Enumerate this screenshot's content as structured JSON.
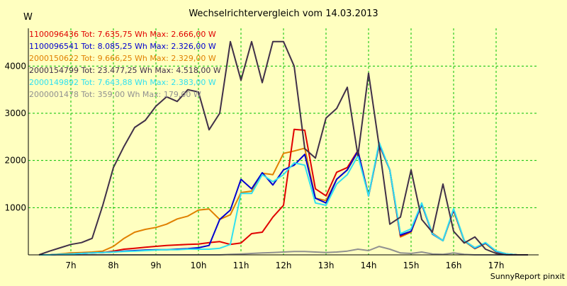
{
  "chart_data": {
    "type": "line",
    "title": "Wechselrichtervergleich vom 14.03.2013",
    "ylabel": "W",
    "xlabel": "",
    "ylim": [
      0,
      4800
    ],
    "xlim": [
      6.0,
      18.0
    ],
    "grid": true,
    "legend_position": "top-left",
    "y_ticks": [
      {
        "value": 1000,
        "label": "1000"
      },
      {
        "value": 2000,
        "label": "2000"
      },
      {
        "value": 3000,
        "label": "3000"
      },
      {
        "value": 4000,
        "label": "4000"
      }
    ],
    "x_ticks": [
      {
        "value": 7,
        "label": "7h"
      },
      {
        "value": 8,
        "label": "8h"
      },
      {
        "value": 9,
        "label": "9h"
      },
      {
        "value": 10,
        "label": "10h"
      },
      {
        "value": 11,
        "label": "11h"
      },
      {
        "value": 12,
        "label": "12h"
      },
      {
        "value": 13,
        "label": "13h"
      },
      {
        "value": 14,
        "label": "14h"
      },
      {
        "value": 15,
        "label": "15h"
      },
      {
        "value": 16,
        "label": "16h"
      },
      {
        "value": 17,
        "label": "17h"
      }
    ],
    "x": [
      6.25,
      6.5,
      6.75,
      7.0,
      7.25,
      7.5,
      7.75,
      8.0,
      8.25,
      8.5,
      8.75,
      9.0,
      9.25,
      9.5,
      9.75,
      10.0,
      10.25,
      10.5,
      10.75,
      11.0,
      11.25,
      11.5,
      11.75,
      12.0,
      12.25,
      12.5,
      12.75,
      13.0,
      13.25,
      13.5,
      13.75,
      14.0,
      14.25,
      14.5,
      14.75,
      15.0,
      15.25,
      15.5,
      15.75,
      16.0,
      16.25,
      16.5,
      16.75,
      17.0,
      17.25,
      17.5,
      17.75
    ],
    "series": [
      {
        "name": "1100096436",
        "legend": "1100096436 Tot: 7.635,75 Wh Max: 2.666,00 W",
        "color": "#e00000",
        "values": [
          0,
          0,
          10,
          20,
          30,
          40,
          50,
          80,
          120,
          140,
          160,
          180,
          200,
          210,
          220,
          230,
          260,
          280,
          220,
          250,
          450,
          480,
          800,
          1050,
          2660,
          2640,
          1400,
          1250,
          1750,
          1850,
          2210,
          1250,
          2350,
          1800,
          400,
          500,
          1080,
          460,
          300,
          950,
          300,
          150,
          250,
          80,
          20,
          0,
          0
        ]
      },
      {
        "name": "1100096541",
        "legend": "1100096541 Tot: 8.085,25 Wh Max: 2.326,00 W",
        "color": "#0000d0",
        "values": [
          0,
          0,
          10,
          20,
          30,
          40,
          50,
          60,
          80,
          90,
          100,
          110,
          110,
          120,
          130,
          150,
          200,
          750,
          950,
          1600,
          1400,
          1740,
          1480,
          1800,
          1900,
          2130,
          1200,
          1100,
          1600,
          1800,
          2200,
          1250,
          2350,
          1800,
          420,
          500,
          1080,
          440,
          300,
          960,
          300,
          140,
          250,
          70,
          20,
          0,
          0
        ]
      },
      {
        "name": "2000150622",
        "legend": "2000150622 Tot: 9.666,25 Wh Max: 2.329,00 W",
        "color": "#e08000",
        "values": [
          0,
          0,
          20,
          40,
          50,
          60,
          80,
          180,
          350,
          480,
          540,
          580,
          650,
          760,
          820,
          950,
          970,
          750,
          850,
          1320,
          1350,
          1730,
          1700,
          2150,
          2200,
          2260,
          1200,
          1150,
          1600,
          1800,
          2180,
          1250,
          2330,
          1800,
          380,
          480,
          1080,
          450,
          300,
          940,
          290,
          130,
          240,
          60,
          20,
          0,
          0
        ]
      },
      {
        "name": "2000154799",
        "legend": "2000154799 Tot: 23.477,25 Wh Max: 4.518,00 W",
        "color": "#403048",
        "values": [
          0,
          80,
          150,
          220,
          260,
          350,
          1050,
          1850,
          2300,
          2700,
          2850,
          3150,
          3350,
          3250,
          3500,
          3450,
          2650,
          3000,
          4518,
          3700,
          4518,
          3650,
          4518,
          4518,
          4000,
          2250,
          2050,
          2900,
          3100,
          3550,
          2100,
          3850,
          2300,
          650,
          800,
          1800,
          750,
          480,
          1500,
          500,
          250,
          380,
          120,
          30,
          0,
          0,
          0
        ]
      },
      {
        "name": "2000149892",
        "legend": "2000149892 Tot: 7.643,88 Wh Max: 2.383,00 W",
        "color": "#30e0f0",
        "values": [
          0,
          0,
          10,
          20,
          30,
          40,
          50,
          60,
          70,
          80,
          90,
          100,
          110,
          110,
          120,
          120,
          120,
          140,
          220,
          1300,
          1300,
          1700,
          1550,
          1700,
          1950,
          1900,
          1100,
          1050,
          1500,
          1700,
          2100,
          1250,
          2383,
          1800,
          450,
          550,
          1100,
          450,
          300,
          980,
          300,
          150,
          260,
          80,
          20,
          0,
          0
        ]
      },
      {
        "name": "2000001478",
        "legend": "2000001478 Tot: 359,00 Wh Max: 179,00 W",
        "color": "#909090",
        "values": [
          0,
          0,
          0,
          0,
          0,
          0,
          0,
          0,
          0,
          0,
          0,
          0,
          0,
          0,
          0,
          0,
          0,
          0,
          10,
          20,
          30,
          40,
          50,
          60,
          70,
          70,
          60,
          50,
          60,
          80,
          120,
          90,
          179,
          120,
          40,
          30,
          60,
          20,
          10,
          40,
          10,
          0,
          0,
          0,
          0,
          0,
          0
        ]
      }
    ],
    "footer": "SunnyReport pinxit"
  }
}
